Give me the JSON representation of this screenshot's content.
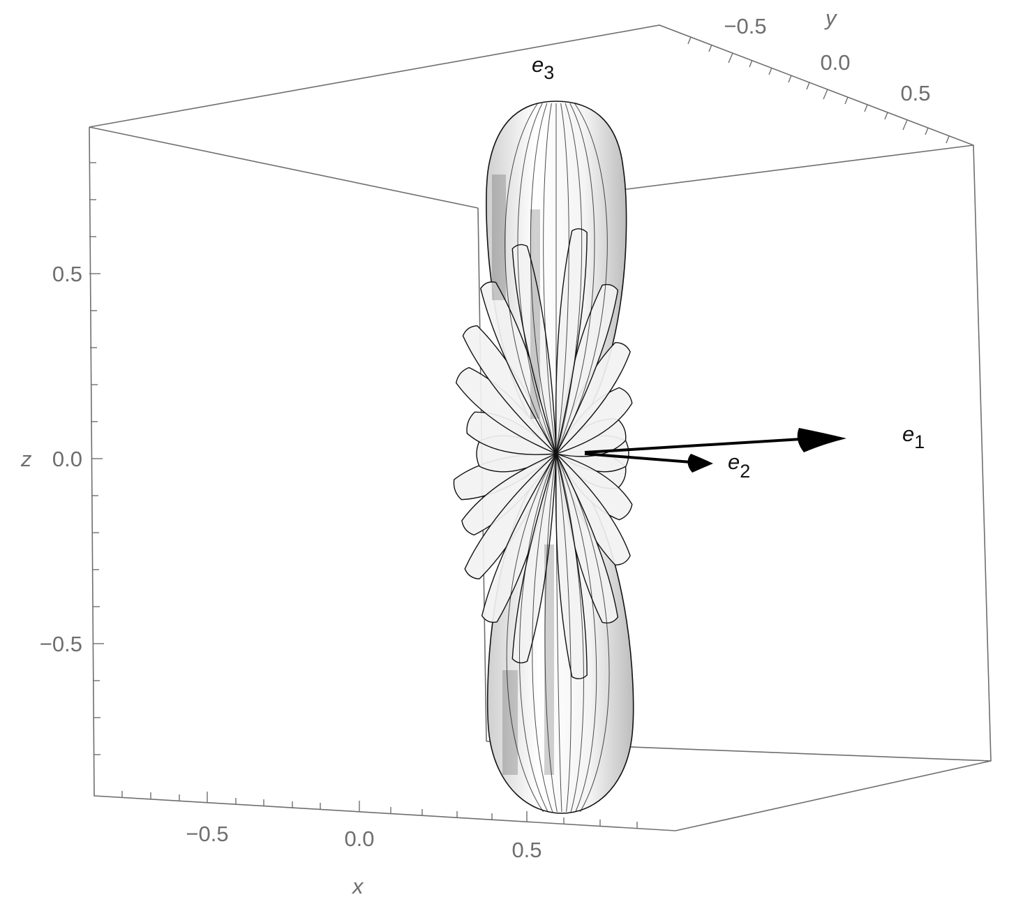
{
  "axes": {
    "x": {
      "name": "x",
      "ticks": [
        "−0.5",
        "0.0",
        "0.5"
      ]
    },
    "y": {
      "name": "y",
      "ticks": [
        "−0.5",
        "0.0",
        "0.5"
      ]
    },
    "z": {
      "name": "z",
      "ticks": [
        "0.5",
        "0.0",
        "−0.5"
      ]
    }
  },
  "vectors": [
    {
      "letter": "e",
      "sub": "1"
    },
    {
      "letter": "e",
      "sub": "2"
    },
    {
      "letter": "e",
      "sub": "3"
    }
  ],
  "colors": {
    "box": "#6e6e6e",
    "surface_fill": "#f2f2f2",
    "surface_edge": "#111111",
    "vector": "#000000"
  },
  "view": {
    "surface": "radiation-pattern lobes elongated along z",
    "grid": false
  }
}
